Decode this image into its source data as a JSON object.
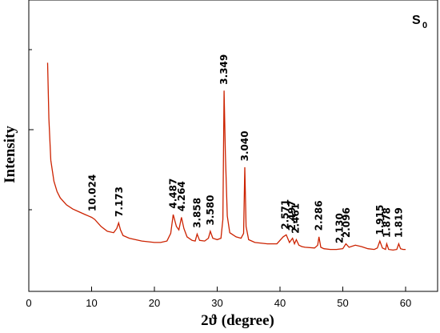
{
  "chart_data": {
    "type": "line",
    "title": "",
    "sample_label": "S",
    "sample_subscript": "0",
    "xlabel": "2ϑ (degree)",
    "ylabel": "Intensity",
    "xlim": [
      0,
      63
    ],
    "x_ticks": [
      "0",
      "10",
      "20",
      "30",
      "40",
      "50",
      "60"
    ],
    "y_ticks_labeled": false,
    "grid": false,
    "legend": "none",
    "series": [
      {
        "color": "#cc2200",
        "x": [
          3.0,
          3.2,
          3.5,
          4.0,
          4.5,
          5.0,
          6.0,
          7.0,
          8.0,
          9.0,
          9.5,
          10.0,
          10.5,
          11.5,
          12.5,
          13.5,
          14.0,
          14.3,
          14.6,
          15.0,
          16.0,
          17.0,
          18.0,
          19.0,
          20.0,
          21.0,
          22.0,
          22.6,
          23.0,
          23.5,
          23.9,
          24.3,
          24.7,
          25.2,
          26.0,
          26.5,
          26.8,
          27.2,
          28.0,
          28.6,
          28.9,
          29.3,
          30.0,
          30.6,
          30.9,
          31.1,
          31.3,
          31.6,
          32.0,
          33.0,
          33.8,
          34.2,
          34.4,
          34.6,
          35.0,
          36.0,
          38.0,
          39.5,
          40.5,
          41.0,
          41.5,
          42.0,
          42.3,
          42.6,
          43.0,
          43.5,
          44.0,
          45.5,
          46.0,
          46.2,
          46.5,
          47.0,
          48.0,
          49.0,
          50.0,
          50.5,
          51.0,
          52.0,
          53.0,
          54.0,
          55.0,
          55.5,
          55.9,
          56.3,
          56.8,
          57.0,
          57.3,
          58.0,
          58.6,
          58.9,
          59.2,
          59.6,
          60.0
        ],
        "y": [
          280,
          200,
          140,
          110,
          95,
          86,
          76,
          70,
          66,
          62,
          60,
          58,
          55,
          45,
          38,
          36,
          42,
          50,
          40,
          32,
          28,
          26,
          24,
          23,
          22,
          22,
          24,
          35,
          62,
          45,
          40,
          58,
          42,
          30,
          25,
          24,
          34,
          25,
          24,
          28,
          38,
          28,
          26,
          28,
          55,
          240,
          150,
          60,
          36,
          30,
          28,
          35,
          130,
          45,
          26,
          22,
          20,
          20,
          30,
          33,
          22,
          28,
          20,
          26,
          18,
          16,
          15,
          14,
          18,
          30,
          15,
          13,
          12,
          12,
          13,
          20,
          15,
          18,
          16,
          13,
          12,
          14,
          24,
          14,
          12,
          20,
          12,
          11,
          12,
          20,
          13,
          12,
          12
        ]
      }
    ],
    "annotations": [
      {
        "label": "10.024",
        "x": 10.1,
        "y": 62
      },
      {
        "label": "7.173",
        "x": 14.4,
        "y": 54
      },
      {
        "label": "4.487",
        "x": 23.0,
        "y": 66
      },
      {
        "label": "4.264",
        "x": 24.3,
        "y": 62
      },
      {
        "label": "3.858",
        "x": 26.8,
        "y": 38
      },
      {
        "label": "3.580",
        "x": 28.9,
        "y": 42
      },
      {
        "label": "3.349",
        "x": 31.1,
        "y": 244
      },
      {
        "label": "3.040",
        "x": 34.4,
        "y": 134
      },
      {
        "label": "2.571",
        "x": 40.8,
        "y": 36
      },
      {
        "label": "2.497",
        "x": 41.9,
        "y": 34
      },
      {
        "label": "2.461",
        "x": 42.5,
        "y": 30
      },
      {
        "label": "2.286",
        "x": 46.2,
        "y": 34
      },
      {
        "label": "2.130",
        "x": 49.5,
        "y": 16
      },
      {
        "label": "2.096",
        "x": 50.6,
        "y": 24
      },
      {
        "label": "1.915",
        "x": 55.9,
        "y": 28
      },
      {
        "label": "1.878",
        "x": 57.0,
        "y": 24
      },
      {
        "label": "1.819",
        "x": 58.9,
        "y": 24
      }
    ]
  }
}
